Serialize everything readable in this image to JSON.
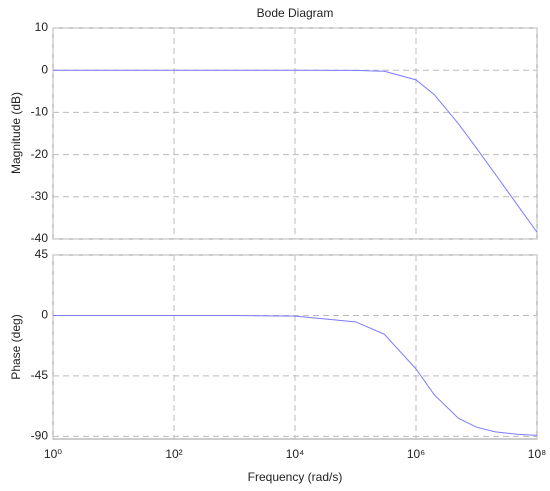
{
  "chart_data": [
    {
      "type": "line",
      "title": "Bode Diagram",
      "ylabel": "Magnitude (dB)",
      "xscale": "log",
      "grid": true,
      "x": [
        1,
        10,
        100,
        1000,
        10000,
        100000,
        300000,
        1000000,
        2000000,
        5000000,
        10000000,
        20000000,
        50000000,
        100000000
      ],
      "series": [
        {
          "color": "#7b7bff",
          "values": [
            0,
            0,
            0,
            0,
            0,
            -0.03,
            -0.26,
            -2.29,
            -5.77,
            -12.65,
            -18.48,
            -24.45,
            -32.4,
            -38.4
          ]
        }
      ],
      "xlim": [
        1,
        100000000
      ],
      "xticks": [
        1,
        100,
        10000,
        1000000,
        100000000
      ],
      "ylim": [
        -40,
        10
      ],
      "yticks": [
        10,
        0,
        -10,
        -20,
        -30,
        -40
      ]
    },
    {
      "type": "line",
      "ylabel": "Phase (deg)",
      "xlabel": "Frequency  (rad/s)",
      "xscale": "log",
      "grid": true,
      "x": [
        1,
        10,
        100,
        1000,
        10000,
        100000,
        300000,
        1000000,
        2000000,
        5000000,
        10000000,
        20000000,
        50000000,
        100000000
      ],
      "series": [
        {
          "color": "#7b7bff",
          "values": [
            0,
            0,
            0,
            -0.05,
            -0.48,
            -4.76,
            -14.0,
            -39.8,
            -59.0,
            -76.5,
            -83.2,
            -86.6,
            -88.6,
            -89.3
          ]
        }
      ],
      "xlim": [
        1,
        100000000
      ],
      "xticks": [
        {
          "value": 1,
          "label": "10⁰"
        },
        {
          "value": 100,
          "label": "10²"
        },
        {
          "value": 10000,
          "label": "10⁴"
        },
        {
          "value": 1000000,
          "label": "10⁶"
        },
        {
          "value": 100000000,
          "label": "10⁸"
        }
      ],
      "ylim": [
        -92,
        45
      ],
      "yticks": [
        45,
        0,
        -45,
        -90
      ]
    }
  ]
}
